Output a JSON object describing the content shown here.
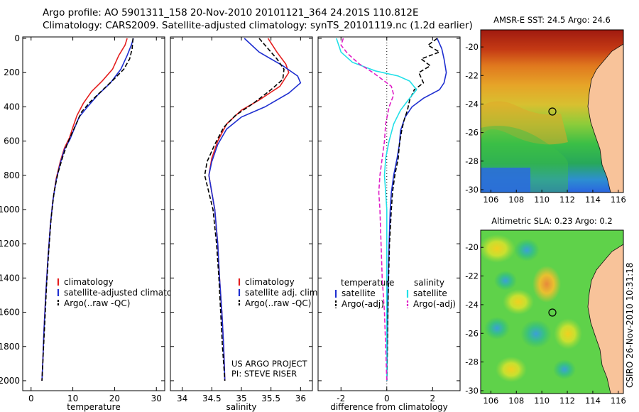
{
  "header": {
    "title_line1": "Argo profile: AO 5901311_158 20-Nov-2010 20101121_364 24.201S 110.812E",
    "title_line2": "Climatology: CARS2009. Satellite-adjusted climatology: synTS_20101119.nc (1.2d earlier)"
  },
  "footer": {
    "credit": "CSIRO 26-Nov-2010 10:31:18"
  },
  "colors": {
    "climatology": "#e41e1e",
    "satellite": "#1f2fd0",
    "argo": "#000000",
    "salinity_satellite": "#22e0e8",
    "salinity_argo": "#e020c8"
  },
  "chart_data": [
    {
      "type": "line",
      "xlabel": "temperature",
      "xlim": [
        -2,
        32
      ],
      "ylim": [
        0,
        2050
      ],
      "xticks": [
        0,
        10,
        20,
        30
      ],
      "yticks": [
        0,
        200,
        400,
        600,
        800,
        1000,
        1200,
        1400,
        1600,
        1800,
        2000
      ],
      "legend": {
        "position": "bottom-right",
        "entries": [
          "climatology",
          "satellite-adjusted climatology",
          "Argo(..raw -QC)"
        ]
      },
      "series": [
        {
          "name": "climatology",
          "style": "solid",
          "color": "climatology",
          "points": [
            [
              23,
              0
            ],
            [
              22.5,
              40
            ],
            [
              21,
              100
            ],
            [
              19.5,
              180
            ],
            [
              17,
              250
            ],
            [
              14.5,
              310
            ],
            [
              12.5,
              380
            ],
            [
              11,
              450
            ],
            [
              10,
              520
            ],
            [
              9.2,
              580
            ],
            [
              8,
              640
            ],
            [
              7,
              720
            ],
            [
              6,
              820
            ],
            [
              5.2,
              950
            ],
            [
              4.6,
              1100
            ],
            [
              4,
              1300
            ],
            [
              3.5,
              1500
            ],
            [
              3.1,
              1700
            ],
            [
              2.8,
              1900
            ],
            [
              2.6,
              2000
            ]
          ]
        },
        {
          "name": "satellite-adjusted climatology",
          "style": "solid",
          "color": "satellite",
          "points": [
            [
              24.5,
              0
            ],
            [
              24,
              40
            ],
            [
              23,
              100
            ],
            [
              21.5,
              180
            ],
            [
              19,
              260
            ],
            [
              16,
              330
            ],
            [
              13.5,
              400
            ],
            [
              11.5,
              460
            ],
            [
              10.3,
              530
            ],
            [
              9.3,
              590
            ],
            [
              8,
              650
            ],
            [
              7,
              730
            ],
            [
              6,
              830
            ],
            [
              5.2,
              950
            ],
            [
              4.6,
              1100
            ],
            [
              4,
              1300
            ],
            [
              3.5,
              1500
            ],
            [
              3.1,
              1700
            ],
            [
              2.8,
              1900
            ],
            [
              2.6,
              2000
            ]
          ]
        },
        {
          "name": "Argo(..raw -QC)",
          "style": "dashed",
          "color": "argo",
          "points": [
            [
              24.4,
              0
            ],
            [
              24.2,
              60
            ],
            [
              23.6,
              120
            ],
            [
              22.2,
              180
            ],
            [
              19.8,
              240
            ],
            [
              17.2,
              300
            ],
            [
              14.2,
              370
            ],
            [
              12.1,
              430
            ],
            [
              10.8,
              500
            ],
            [
              9.7,
              560
            ],
            [
              8.6,
              620
            ],
            [
              7.6,
              690
            ],
            [
              6.4,
              790
            ],
            [
              5.5,
              900
            ],
            [
              4.8,
              1050
            ],
            [
              4.2,
              1250
            ],
            [
              3.7,
              1450
            ],
            [
              3.3,
              1650
            ],
            [
              2.9,
              1850
            ],
            [
              2.6,
              2000
            ]
          ]
        }
      ]
    },
    {
      "type": "line",
      "xlabel": "salinity",
      "xlim": [
        33.8,
        36.2
      ],
      "ylim": [
        0,
        2050
      ],
      "xticks": [
        34,
        34.5,
        35,
        35.5,
        36
      ],
      "legend": {
        "position": "bottom-right",
        "entries": [
          "climatology",
          "satellite adj. clim.",
          "Argo(..raw -QC)"
        ]
      },
      "annotation": [
        "US ARGO PROJECT",
        "PI: STEVE RISER"
      ],
      "series": [
        {
          "name": "climatology",
          "style": "solid",
          "color": "climatology",
          "points": [
            [
              35.45,
              0
            ],
            [
              35.6,
              80
            ],
            [
              35.75,
              150
            ],
            [
              35.8,
              200
            ],
            [
              35.65,
              280
            ],
            [
              35.3,
              360
            ],
            [
              35.0,
              420
            ],
            [
              34.75,
              500
            ],
            [
              34.6,
              600
            ],
            [
              34.5,
              700
            ],
            [
              34.45,
              800
            ],
            [
              34.5,
              900
            ],
            [
              34.55,
              1000
            ],
            [
              34.6,
              1200
            ],
            [
              34.63,
              1400
            ],
            [
              34.67,
              1600
            ],
            [
              34.7,
              1800
            ],
            [
              34.72,
              2000
            ]
          ]
        },
        {
          "name": "satellite adj. clim.",
          "style": "solid",
          "color": "satellite",
          "points": [
            [
              35.05,
              0
            ],
            [
              35.3,
              80
            ],
            [
              35.7,
              160
            ],
            [
              35.95,
              220
            ],
            [
              36.0,
              260
            ],
            [
              35.8,
              320
            ],
            [
              35.4,
              400
            ],
            [
              35.0,
              460
            ],
            [
              34.75,
              530
            ],
            [
              34.6,
              620
            ],
            [
              34.5,
              720
            ],
            [
              34.45,
              800
            ],
            [
              34.5,
              900
            ],
            [
              34.55,
              1000
            ],
            [
              34.6,
              1200
            ],
            [
              34.63,
              1400
            ],
            [
              34.67,
              1600
            ],
            [
              34.7,
              1800
            ],
            [
              34.72,
              2000
            ]
          ]
        },
        {
          "name": "Argo(..raw -QC)",
          "style": "dashed",
          "color": "argo",
          "points": [
            [
              35.3,
              0
            ],
            [
              35.45,
              60
            ],
            [
              35.6,
              120
            ],
            [
              35.72,
              180
            ],
            [
              35.7,
              240
            ],
            [
              35.5,
              300
            ],
            [
              35.2,
              380
            ],
            [
              34.9,
              450
            ],
            [
              34.7,
              520
            ],
            [
              34.55,
              620
            ],
            [
              34.42,
              720
            ],
            [
              34.38,
              800
            ],
            [
              34.45,
              900
            ],
            [
              34.52,
              1000
            ],
            [
              34.58,
              1200
            ],
            [
              34.62,
              1400
            ],
            [
              34.65,
              1600
            ],
            [
              34.68,
              1800
            ],
            [
              34.72,
              2000
            ]
          ]
        }
      ]
    },
    {
      "type": "line",
      "xlabel": "difference from climatology",
      "xlim": [
        -3,
        3.2
      ],
      "ylim": [
        0,
        2050
      ],
      "xticks": [
        -2,
        0,
        2
      ],
      "zero_line": 0,
      "legend": {
        "position": "bottom",
        "entries": [
          "temperature",
          "satellite",
          "Argo(-adj)",
          "salinity",
          "satellite",
          "Argo(-adj)"
        ]
      },
      "series": [
        {
          "name": "temperature satellite",
          "style": "solid",
          "color": "satellite",
          "points": [
            [
              2.2,
              0
            ],
            [
              2.4,
              60
            ],
            [
              2.5,
              120
            ],
            [
              2.6,
              200
            ],
            [
              2.5,
              260
            ],
            [
              2.3,
              300
            ],
            [
              1.6,
              350
            ],
            [
              1.1,
              400
            ],
            [
              0.8,
              460
            ],
            [
              0.6,
              540
            ],
            [
              0.55,
              620
            ],
            [
              0.45,
              700
            ],
            [
              0.3,
              800
            ],
            [
              0.2,
              900
            ],
            [
              0.15,
              1000
            ],
            [
              0.1,
              1200
            ],
            [
              0.05,
              1500
            ],
            [
              0.02,
              1800
            ],
            [
              0,
              2000
            ]
          ]
        },
        {
          "name": "temperature Argo(-adj)",
          "style": "dashed",
          "color": "argo",
          "points": [
            [
              2.2,
              0
            ],
            [
              1.8,
              40
            ],
            [
              2.3,
              80
            ],
            [
              1.5,
              120
            ],
            [
              1.9,
              160
            ],
            [
              1.4,
              200
            ],
            [
              1.6,
              260
            ],
            [
              1.2,
              300
            ],
            [
              1.0,
              360
            ],
            [
              0.9,
              420
            ],
            [
              0.75,
              480
            ],
            [
              0.65,
              540
            ],
            [
              0.55,
              620
            ],
            [
              0.5,
              700
            ],
            [
              0.35,
              800
            ],
            [
              0.25,
              900
            ],
            [
              0.2,
              1000
            ],
            [
              0.12,
              1200
            ],
            [
              0.06,
              1500
            ],
            [
              0.03,
              1800
            ],
            [
              0,
              2000
            ]
          ]
        },
        {
          "name": "salinity satellite",
          "style": "solid",
          "color": "salinity_satellite",
          "points": [
            [
              -2.2,
              0
            ],
            [
              -2.0,
              80
            ],
            [
              -1.5,
              140
            ],
            [
              -0.5,
              190
            ],
            [
              0.5,
              220
            ],
            [
              1.0,
              250
            ],
            [
              1.3,
              300
            ],
            [
              1.0,
              350
            ],
            [
              0.6,
              420
            ],
            [
              0.3,
              500
            ],
            [
              0.1,
              600
            ],
            [
              -0.05,
              700
            ],
            [
              -0.1,
              800
            ],
            [
              -0.05,
              900
            ],
            [
              0,
              1000
            ],
            [
              0,
              1200
            ],
            [
              0,
              1500
            ],
            [
              0,
              1800
            ],
            [
              0,
              2000
            ]
          ]
        },
        {
          "name": "salinity Argo(-adj)",
          "style": "dashed",
          "color": "salinity_argo",
          "points": [
            [
              -1.9,
              0
            ],
            [
              -2.0,
              40
            ],
            [
              -1.7,
              90
            ],
            [
              -1.2,
              150
            ],
            [
              -0.6,
              200
            ],
            [
              -0.2,
              240
            ],
            [
              0.2,
              280
            ],
            [
              0.3,
              330
            ],
            [
              0.1,
              400
            ],
            [
              -0.05,
              500
            ],
            [
              -0.1,
              600
            ],
            [
              -0.2,
              700
            ],
            [
              -0.3,
              800
            ],
            [
              -0.35,
              900
            ],
            [
              -0.3,
              1000
            ],
            [
              -0.25,
              1200
            ],
            [
              -0.2,
              1400
            ],
            [
              -0.1,
              1600
            ],
            [
              -0.05,
              1800
            ],
            [
              0,
              2000
            ]
          ]
        }
      ]
    },
    {
      "type": "heatmap",
      "title": "AMSR-E SST: 24.5 Argo: 24.6",
      "xticks": [
        106,
        108,
        110,
        112,
        114,
        116
      ],
      "yticks": [
        -20,
        -22,
        -24,
        -26,
        -28,
        -30
      ],
      "xlim": [
        105.2,
        116.4
      ],
      "ylim": [
        -30.2,
        -18.8
      ],
      "argo_location": [
        110.81,
        -24.2
      ]
    },
    {
      "type": "heatmap",
      "title": "Altimetric SLA: 0.23 Argo: 0.2",
      "xticks": [
        106,
        108,
        110,
        112,
        114,
        116
      ],
      "yticks": [
        -20,
        -22,
        -24,
        -26,
        -28,
        -30
      ],
      "xlim": [
        105.2,
        116.4
      ],
      "ylim": [
        -30.2,
        -18.8
      ],
      "argo_location": [
        110.81,
        -24.2
      ]
    }
  ]
}
